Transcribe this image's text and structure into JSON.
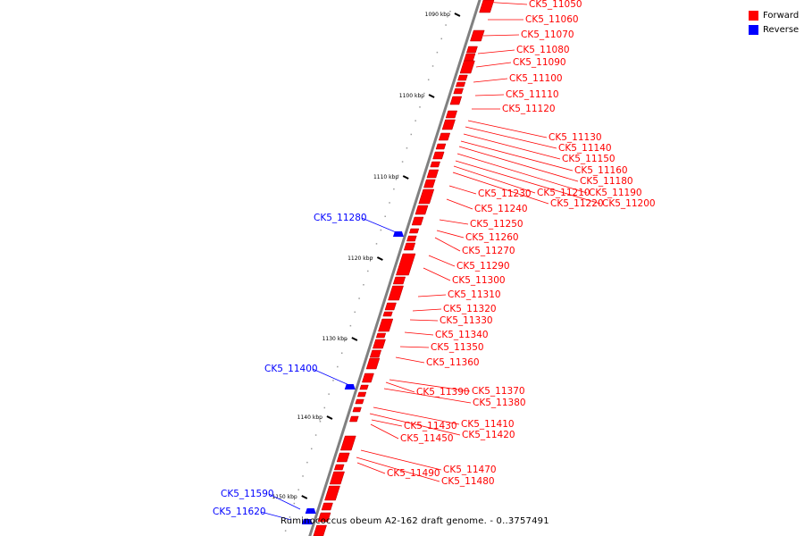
{
  "caption": "Ruminococcus obeum A2-162 draft genome. - 0..3757491",
  "legend": [
    {
      "label": "Forward",
      "color": "#ff0000"
    },
    {
      "label": "Reverse",
      "color": "#0000ff"
    }
  ],
  "colors": {
    "forward": "#ff0000",
    "reverse": "#0000ff",
    "backbone": "#808080",
    "tick": "#000000"
  },
  "ticks": [
    "1090 kbp",
    "1100 kbp",
    "1110 kbp",
    "1120 kbp",
    "1130 kbp",
    "1140 kbp",
    "1150 kbp"
  ],
  "genes": [
    {
      "id": "CK5_11050",
      "strand": "forward"
    },
    {
      "id": "CK5_11060",
      "strand": "forward"
    },
    {
      "id": "CK5_11070",
      "strand": "forward"
    },
    {
      "id": "CK5_11080",
      "strand": "forward"
    },
    {
      "id": "CK5_11090",
      "strand": "forward"
    },
    {
      "id": "CK5_11100",
      "strand": "forward"
    },
    {
      "id": "CK5_11110",
      "strand": "forward"
    },
    {
      "id": "CK5_11120",
      "strand": "forward"
    },
    {
      "id": "CK5_11130",
      "strand": "forward"
    },
    {
      "id": "CK5_11140",
      "strand": "forward"
    },
    {
      "id": "CK5_11150",
      "strand": "forward"
    },
    {
      "id": "CK5_11160",
      "strand": "forward"
    },
    {
      "id": "CK5_11180",
      "strand": "forward"
    },
    {
      "id": "CK5_11190",
      "strand": "forward"
    },
    {
      "id": "CK5_11200",
      "strand": "forward"
    },
    {
      "id": "CK5_11210",
      "strand": "forward"
    },
    {
      "id": "CK5_11220",
      "strand": "forward"
    },
    {
      "id": "CK5_11230",
      "strand": "forward"
    },
    {
      "id": "CK5_11240",
      "strand": "forward"
    },
    {
      "id": "CK5_11250",
      "strand": "forward"
    },
    {
      "id": "CK5_11260",
      "strand": "forward"
    },
    {
      "id": "CK5_11270",
      "strand": "forward"
    },
    {
      "id": "CK5_11280",
      "strand": "reverse"
    },
    {
      "id": "CK5_11290",
      "strand": "forward"
    },
    {
      "id": "CK5_11300",
      "strand": "forward"
    },
    {
      "id": "CK5_11310",
      "strand": "forward"
    },
    {
      "id": "CK5_11320",
      "strand": "forward"
    },
    {
      "id": "CK5_11330",
      "strand": "forward"
    },
    {
      "id": "CK5_11340",
      "strand": "forward"
    },
    {
      "id": "CK5_11350",
      "strand": "forward"
    },
    {
      "id": "CK5_11360",
      "strand": "forward"
    },
    {
      "id": "CK5_11370",
      "strand": "forward"
    },
    {
      "id": "CK5_11380",
      "strand": "forward"
    },
    {
      "id": "CK5_11390",
      "strand": "forward"
    },
    {
      "id": "CK5_11400",
      "strand": "reverse"
    },
    {
      "id": "CK5_11410",
      "strand": "forward"
    },
    {
      "id": "CK5_11420",
      "strand": "forward"
    },
    {
      "id": "CK5_11430",
      "strand": "forward"
    },
    {
      "id": "CK5_11450",
      "strand": "forward"
    },
    {
      "id": "CK5_11470",
      "strand": "forward"
    },
    {
      "id": "CK5_11480",
      "strand": "forward"
    },
    {
      "id": "CK5_11490",
      "strand": "forward"
    },
    {
      "id": "CK5_11590",
      "strand": "reverse"
    },
    {
      "id": "CK5_11620",
      "strand": "reverse"
    }
  ]
}
